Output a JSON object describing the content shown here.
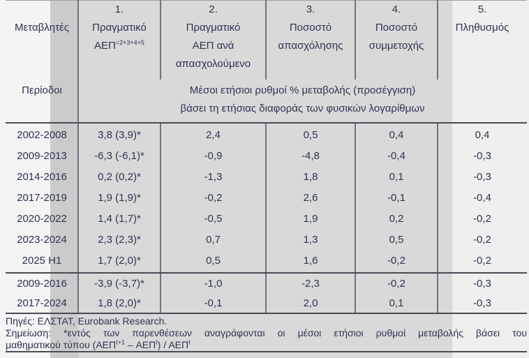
{
  "table": {
    "variables_label": "Μεταβλητές",
    "periods_label": "Περίοδοι",
    "columns": [
      {
        "num": "1.",
        "line1": "Πραγματικό",
        "line2_base": "ΑΕΠ",
        "line2_sup": "=2+3+4+5"
      },
      {
        "num": "2.",
        "line1": "Πραγματικό",
        "line2": "ΑΕΠ ανά",
        "line3": "απασχολούμενο"
      },
      {
        "num": "3.",
        "line1": "Ποσοστό",
        "line2": "απασχόλησης"
      },
      {
        "num": "4.",
        "line1": "Ποσοστό",
        "line2": "συμμετοχής"
      },
      {
        "num": "5.",
        "line1": "Πληθυσμός"
      }
    ],
    "merged_header_line1": "Μέσοι ετήσιοι ρυθμοί % μεταβολής (προσέγγιση)",
    "merged_header_line2": "βάσει τη ετήσιας διαφοράς των φυσικών λογαρίθμων",
    "rows": [
      {
        "period": "2002-2008",
        "values": [
          "3,8 (3,9)*",
          "2,4",
          "0,5",
          "0,4",
          "0,4"
        ]
      },
      {
        "period": "2009-2013",
        "values": [
          "-6,3 (-6,1)*",
          "-0,9",
          "-4,8",
          "-0,4",
          "-0,3"
        ]
      },
      {
        "period": "2014-2016",
        "values": [
          "0,2 (0,2)*",
          "-1,3",
          "1,8",
          "0,1",
          "-0,3"
        ]
      },
      {
        "period": "2017-2019",
        "values": [
          "1,9 (1,9)*",
          "-0,2",
          "2,6",
          "-0,1",
          "-0,4"
        ]
      },
      {
        "period": "2020-2022",
        "values": [
          "1,4 (1,7)*",
          "-0,5",
          "1,9",
          "0,2",
          "-0,2"
        ]
      },
      {
        "period": "2023-2024",
        "values": [
          "2,3 (2,3)*",
          "0,7",
          "1,3",
          "0,5",
          "-0,2"
        ]
      },
      {
        "period": "2025 H1",
        "values": [
          "1,7 (2,0)*",
          "0,5",
          "1,6",
          "-0,2",
          "-0,2"
        ]
      },
      {
        "period": "2009-2016",
        "values": [
          "-3,9 (-3,7)*",
          "-1,0",
          "-2,3",
          "-0,2",
          "-0,3"
        ]
      },
      {
        "period": "2017-2024",
        "values": [
          "1,8 (2,0)*",
          "-0,1",
          "2,0",
          "0,1",
          "-0,3"
        ]
      }
    ]
  },
  "footer": {
    "sources": "Πηγές: ΕΛΣΤΑΤ, Eurobank Research.",
    "note_line1": "Σημείωση: *εντός των παρενθέσεων αναγράφονται οι μέσοι ετήσιοι ρυθμοί μεταβολής βάσει του",
    "note_line2": {
      "p1": "μαθηματικού τύπου (ΑΕΠ",
      "s1": "t+1",
      "p2": " – ΑΕΠ",
      "s2": "t",
      "p3": ") / ΑΕΠ",
      "s3": "t"
    }
  },
  "colors": {
    "text": "#2a3550",
    "page_background": "#f4f4f4",
    "band_strip": "#cbcbcb",
    "band_body": "#d9d9d9",
    "band_right": "#efefef",
    "rule_heavy": "#464b54",
    "rule_thin": "#6f747e"
  }
}
